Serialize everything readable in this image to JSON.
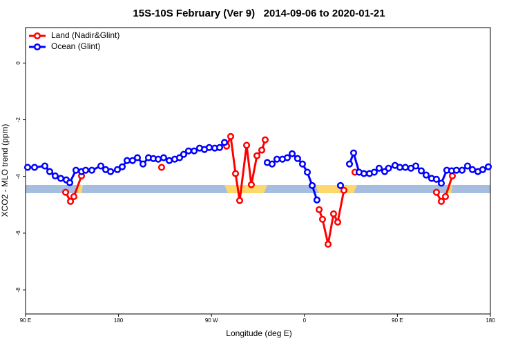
{
  "chart_data": {
    "type": "line",
    "title": "15S-10S February (Ver 9)   2014-09-06 to 2020-01-21",
    "xlabel": "Longitude (deg E)",
    "ylabel": "XCO2 - MLO trend (ppm)",
    "xlim": [
      90,
      540
    ],
    "ylim": [
      -8.85,
      1.25
    ],
    "xticks": [
      {
        "value": 90,
        "label": "90 E"
      },
      180,
      {
        "value": 270,
        "label": "90 W"
      },
      {
        "value": 360,
        "label": "0"
      },
      {
        "value": 450,
        "label": "90 E"
      },
      {
        "value": 540,
        "label": "180"
      }
    ],
    "yticks": [
      0,
      -2,
      -4,
      -6,
      -8
    ],
    "legend": "top-left",
    "series": [
      {
        "name": "Land (Nadir&Glint)",
        "color": "#ff0000",
        "x": [
          128.8,
          133.5,
          136.8,
          144.2,
          null,
          221.7,
          null,
          284.6,
          288.6,
          293.3,
          297.3,
          304.0,
          308.6,
          314.0,
          318.7,
          322.0,
          null,
          374.2,
          377.5,
          382.9,
          388.2,
          392.2,
          398.2,
          null,
          408.9,
          null,
          487.8,
          492.5,
          496.5,
          503.2
        ],
        "values": [
          -4.56,
          -4.88,
          -4.71,
          -3.98,
          null,
          -3.68,
          null,
          -2.93,
          -2.59,
          -3.9,
          -4.85,
          -2.9,
          -4.29,
          -3.27,
          -3.07,
          -2.71,
          null,
          -5.17,
          -5.51,
          -6.39,
          -5.32,
          -5.61,
          -4.49,
          null,
          -3.85,
          null,
          -4.56,
          -4.88,
          -4.71,
          -3.98
        ]
      },
      {
        "name": "Ocean (Glint)",
        "color": "#0000ff",
        "x": [
          92.0,
          98.7,
          108.7,
          113.4,
          118.7,
          124.1,
          129.4,
          132.8,
          138.8,
          144.2,
          148.2,
          154.2,
          162.9,
          167.6,
          172.3,
          178.9,
          183.6,
          188.3,
          193.6,
          198.3,
          203.7,
          209.0,
          213.7,
          218.4,
          223.7,
          229.1,
          234.4,
          239.1,
          243.1,
          247.8,
          253.2,
          258.5,
          263.2,
          267.8,
          273.2,
          277.9,
          282.6,
          null,
          324.0,
          328.7,
          333.4,
          338.7,
          343.4,
          348.1,
          353.4,
          358.1,
          362.8,
          367.5,
          372.1,
          null,
          394.9,
          null,
          403.6,
          407.6,
          412.9,
          417.6,
          423.0,
          427.6,
          432.3,
          437.7,
          441.4,
          447.7,
          452.4,
          457.7,
          463.1,
          467.8,
          473.1,
          477.8,
          483.1,
          487.8,
          492.5,
          497.8,
          502.5,
          507.2,
          512.6,
          517.9,
          522.6,
          527.9,
          532.6,
          538.0
        ],
        "values": [
          -3.68,
          -3.68,
          -3.63,
          -3.83,
          -3.98,
          -4.07,
          -4.12,
          -4.22,
          -3.78,
          -3.83,
          -3.78,
          -3.78,
          -3.63,
          -3.76,
          -3.83,
          -3.76,
          -3.66,
          -3.44,
          -3.44,
          -3.34,
          -3.56,
          -3.34,
          -3.37,
          -3.39,
          -3.34,
          -3.44,
          -3.39,
          -3.34,
          -3.22,
          -3.1,
          -3.1,
          -3.0,
          -3.05,
          -2.98,
          -3.0,
          -2.98,
          -2.8,
          null,
          -3.51,
          -3.56,
          -3.39,
          -3.39,
          -3.34,
          -3.2,
          -3.37,
          -3.56,
          -3.85,
          -4.32,
          -4.83,
          null,
          -4.32,
          null,
          -3.56,
          -3.17,
          -3.85,
          -3.9,
          -3.9,
          -3.85,
          -3.71,
          -3.83,
          -3.71,
          -3.61,
          -3.68,
          -3.68,
          -3.71,
          -3.63,
          -3.8,
          -3.95,
          -4.07,
          -4.1,
          -4.24,
          -3.78,
          -3.8,
          -3.78,
          -3.78,
          -3.63,
          -3.76,
          -3.83,
          -3.76,
          -3.66
        ]
      }
    ]
  }
}
